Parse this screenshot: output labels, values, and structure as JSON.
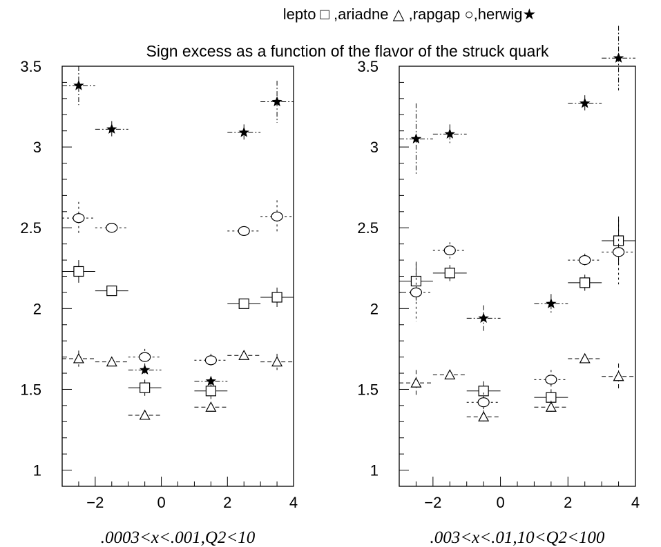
{
  "legend_text": "lepto □ ,ariadne △ ,rapgap ○,herwig★",
  "title": "Sign excess as a function of the flavor of the struck quark",
  "chart_data": [
    {
      "type": "scatter",
      "caption": ".0003<x<.001,Q2<10",
      "xlim": [
        -3,
        4
      ],
      "ylim": [
        0.9,
        3.5
      ],
      "xticks": [
        -2,
        0,
        2,
        4
      ],
      "xtick_labels": [
        "−2",
        "0",
        "2",
        "4"
      ],
      "yticks": [
        1,
        1.5,
        2,
        2.5,
        3,
        3.5
      ],
      "ytick_labels": [
        "1",
        "1.5",
        "2",
        "2.5",
        "3",
        "3.5"
      ],
      "grid": false,
      "series": [
        {
          "name": "lepto",
          "marker": "square",
          "x": [
            -2.5,
            -1.5,
            -0.5,
            1.5,
            2.5,
            3.5
          ],
          "y": [
            2.23,
            2.11,
            1.51,
            1.49,
            2.03,
            2.07
          ],
          "yerr": [
            0.07,
            0.03,
            0.05,
            0.05,
            0.03,
            0.06
          ]
        },
        {
          "name": "ariadne",
          "marker": "triangle",
          "x": [
            -2.5,
            -1.5,
            -0.5,
            1.5,
            2.5,
            3.5
          ],
          "y": [
            1.69,
            1.67,
            1.34,
            1.39,
            1.71,
            1.67
          ],
          "yerr": [
            0.05,
            0.02,
            0.02,
            0.02,
            0.02,
            0.05
          ]
        },
        {
          "name": "rapgap",
          "marker": "circle",
          "x": [
            -2.5,
            -1.5,
            -0.5,
            1.5,
            2.5,
            3.5
          ],
          "y": [
            2.56,
            2.5,
            1.7,
            1.68,
            2.48,
            2.57
          ],
          "yerr": [
            0.1,
            0.02,
            0.05,
            0.04,
            0.03,
            0.1
          ]
        },
        {
          "name": "herwig",
          "marker": "star",
          "x": [
            -2.5,
            -1.5,
            -0.5,
            1.5,
            2.5,
            3.5
          ],
          "y": [
            3.38,
            3.11,
            1.62,
            1.55,
            3.09,
            3.28
          ],
          "yerr": [
            0.12,
            0.05,
            0.03,
            0.03,
            0.05,
            0.13
          ]
        }
      ]
    },
    {
      "type": "scatter",
      "caption": ".003<x<.01,10<Q2<100",
      "xlim": [
        -3,
        4
      ],
      "ylim": [
        0.9,
        3.5
      ],
      "xticks": [
        -2,
        0,
        2,
        4
      ],
      "xtick_labels": [
        "−2",
        "0",
        "2",
        "4"
      ],
      "yticks": [
        1,
        1.5,
        2,
        2.5,
        3,
        3.5
      ],
      "ytick_labels": [
        "1",
        "1.5",
        "2",
        "2.5",
        "3",
        "3.5"
      ],
      "grid": false,
      "series": [
        {
          "name": "lepto",
          "marker": "square",
          "x": [
            -2.5,
            -1.5,
            -0.5,
            1.5,
            2.5,
            3.5
          ],
          "y": [
            2.17,
            2.22,
            1.49,
            1.45,
            2.16,
            2.42
          ],
          "yerr": [
            0.12,
            0.05,
            0.06,
            0.05,
            0.05,
            0.15
          ]
        },
        {
          "name": "ariadne",
          "marker": "triangle",
          "x": [
            -2.5,
            -1.5,
            -0.5,
            1.5,
            2.5,
            3.5
          ],
          "y": [
            1.54,
            1.59,
            1.33,
            1.39,
            1.69,
            1.58
          ],
          "yerr": [
            0.08,
            0.02,
            0.04,
            0.04,
            0.02,
            0.08
          ]
        },
        {
          "name": "rapgap",
          "marker": "circle",
          "x": [
            -2.5,
            -1.5,
            -0.5,
            1.5,
            2.5,
            3.5
          ],
          "y": [
            2.1,
            2.36,
            1.42,
            1.56,
            2.3,
            2.35
          ],
          "yerr": [
            0.18,
            0.05,
            0.06,
            0.06,
            0.04,
            0.2
          ]
        },
        {
          "name": "herwig",
          "marker": "star",
          "x": [
            -2.5,
            -1.5,
            -0.5,
            2.5,
            1.5,
            3.5
          ],
          "y": [
            3.05,
            3.08,
            1.94,
            3.27,
            2.03,
            3.55
          ],
          "yerr": [
            0.22,
            0.06,
            0.08,
            0.05,
            0.06,
            0.2
          ]
        }
      ]
    }
  ]
}
